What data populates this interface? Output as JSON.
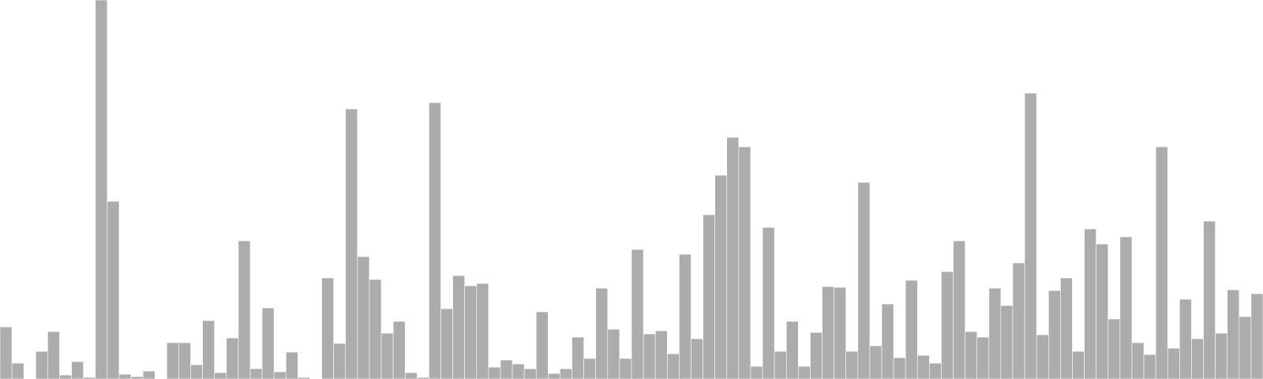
{
  "chart_data": {
    "type": "bar",
    "color": "#acacac",
    "background": "#ffffff",
    "grid": false,
    "legend": "none",
    "ylim": [
      0,
      480
    ],
    "values": [
      66,
      20,
      0,
      35,
      60,
      5,
      22,
      2,
      480,
      225,
      6,
      3,
      10,
      0,
      46,
      46,
      18,
      74,
      8,
      52,
      175,
      13,
      90,
      9,
      34,
      2,
      0,
      128,
      45,
      342,
      155,
      126,
      58,
      73,
      8,
      2,
      350,
      89,
      131,
      118,
      121,
      15,
      24,
      19,
      13,
      85,
      7,
      13,
      53,
      26,
      115,
      63,
      26,
      164,
      57,
      61,
      32,
      158,
      51,
      208,
      258,
      306,
      294,
      16,
      192,
      35,
      73,
      16,
      59,
      117,
      116,
      35,
      249,
      42,
      95,
      27,
      125,
      30,
      20,
      136,
      175,
      60,
      53,
      115,
      93,
      147,
      362,
      56,
      112,
      128,
      35,
      190,
      171,
      76,
      180,
      46,
      31,
      294,
      39,
      101,
      51,
      200,
      58,
      113,
      79,
      108
    ]
  }
}
